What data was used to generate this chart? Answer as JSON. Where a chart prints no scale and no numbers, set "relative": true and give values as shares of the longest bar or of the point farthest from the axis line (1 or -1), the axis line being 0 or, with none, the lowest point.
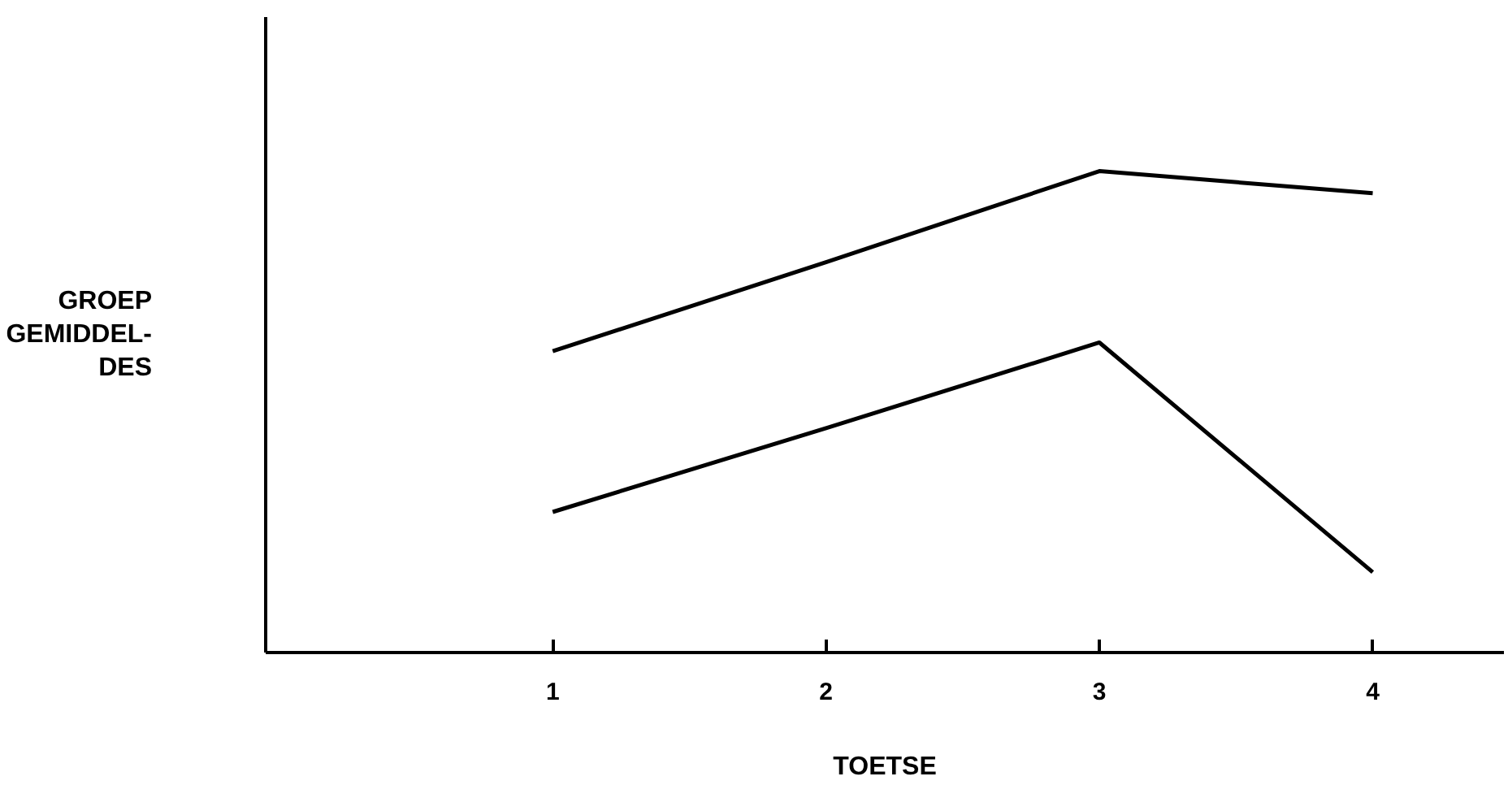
{
  "chart_data": {
    "type": "line",
    "xlabel": "TOETSE",
    "ylabel": "GROEP\nGEMIDDEL-\nDES",
    "categories": [
      "1",
      "2",
      "3",
      "4"
    ],
    "relative": true,
    "grid": false,
    "marker": "none",
    "line_style": "solid",
    "series": [
      {
        "color": "#000000",
        "values": [
          0.626,
          0.811,
          1,
          0.954
        ]
      },
      {
        "color": "#000000",
        "values": [
          0.292,
          0.466,
          0.644,
          0.167
        ]
      }
    ]
  }
}
